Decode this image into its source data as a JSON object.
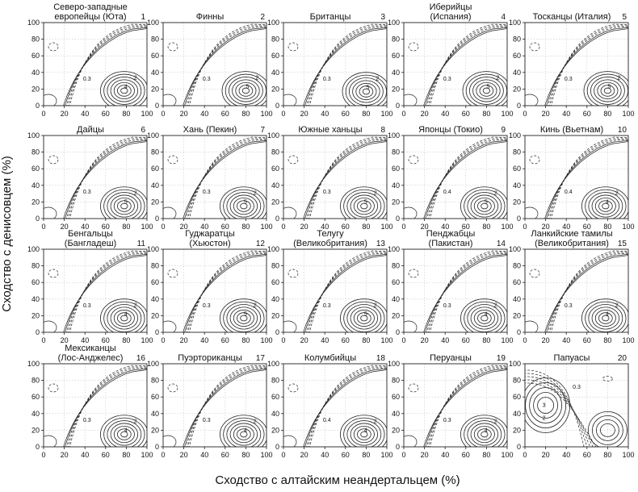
{
  "chart_data": {
    "type": "contour",
    "title": "",
    "xlabel": "Сходство с алтайским неандертальцем (%)",
    "ylabel": "Сходство с денисовцем (%)",
    "xlim": [
      0,
      100
    ],
    "ylim": [
      0,
      100
    ],
    "xticks": [
      0,
      20,
      40,
      60,
      80,
      100
    ],
    "yticks": [
      0,
      20,
      40,
      60,
      80,
      100
    ],
    "grid": true,
    "panels": [
      {
        "number": "1",
        "title": [
          "Северо-западные",
          "европейцы (Юта)"
        ],
        "peak": [
          78,
          18
        ],
        "labels": [
          "0.3",
          "2",
          "4"
        ]
      },
      {
        "number": "2",
        "title": [
          "Финны"
        ],
        "peak": [
          80,
          18
        ],
        "labels": [
          "0.3",
          "2",
          "5"
        ]
      },
      {
        "number": "3",
        "title": [
          "Британцы"
        ],
        "peak": [
          80,
          17
        ],
        "labels": [
          "0.3",
          "2",
          "5"
        ]
      },
      {
        "number": "4",
        "title": [
          "Иберийцы",
          "(Испания)"
        ],
        "peak": [
          80,
          18
        ],
        "labels": [
          "0.3",
          "2",
          "5"
        ]
      },
      {
        "number": "5",
        "title": [
          "Тосканцы (Италия)"
        ],
        "peak": [
          80,
          18
        ],
        "labels": [
          "0.3",
          "2",
          "5"
        ]
      },
      {
        "number": "6",
        "title": [
          "Дайцы"
        ],
        "peak": [
          78,
          15
        ],
        "labels": [
          "0.3",
          "2",
          "5"
        ]
      },
      {
        "number": "7",
        "title": [
          "Хань (Пекин)"
        ],
        "peak": [
          78,
          15
        ],
        "labels": [
          "0.3",
          "2",
          "5"
        ]
      },
      {
        "number": "8",
        "title": [
          "Южные ханьцы"
        ],
        "peak": [
          78,
          15
        ],
        "labels": [
          "0.3",
          "2",
          "5"
        ]
      },
      {
        "number": "9",
        "title": [
          "Японцы (Токио)"
        ],
        "peak": [
          78,
          15
        ],
        "labels": [
          "0.4",
          "2",
          "5"
        ]
      },
      {
        "number": "10",
        "title": [
          "Кинь (Вьетнам)"
        ],
        "peak": [
          78,
          15
        ],
        "labels": [
          "0.4",
          "2",
          "4"
        ]
      },
      {
        "number": "11",
        "title": [
          "Бенгальцы",
          "(Бангладеш)"
        ],
        "peak": [
          78,
          17
        ],
        "labels": [
          "0.3",
          "2",
          "4"
        ]
      },
      {
        "number": "12",
        "title": [
          "Гуджаратцы",
          "(Хьюстон)"
        ],
        "peak": [
          78,
          17
        ],
        "labels": [
          "0.3",
          "2",
          "5"
        ]
      },
      {
        "number": "13",
        "title": [
          "Телугу",
          "(Великобритания)"
        ],
        "peak": [
          78,
          17
        ],
        "labels": [
          "0.3",
          "2",
          "5"
        ]
      },
      {
        "number": "14",
        "title": [
          "Пенджабцы",
          "(Пакистан)"
        ],
        "peak": [
          78,
          17
        ],
        "labels": [
          "0.3",
          "2",
          "4"
        ]
      },
      {
        "number": "15",
        "title": [
          "Ланкийские тамилы",
          "(Великобритания)"
        ],
        "peak": [
          78,
          17
        ],
        "labels": [
          "0.3",
          "2",
          "4"
        ]
      },
      {
        "number": "16",
        "title": [
          "Мексиканцы",
          "(Лос-Анджелес)"
        ],
        "peak": [
          78,
          15
        ],
        "labels": [
          "0.3",
          "2",
          "4"
        ]
      },
      {
        "number": "17",
        "title": [
          "Пуэрториканцы"
        ],
        "peak": [
          78,
          15
        ],
        "labels": [
          "0.3",
          "2",
          "4"
        ]
      },
      {
        "number": "18",
        "title": [
          "Колумбийцы"
        ],
        "peak": [
          78,
          15
        ],
        "labels": [
          "0.4",
          "2",
          "4"
        ]
      },
      {
        "number": "19",
        "title": [
          "Перуанцы"
        ],
        "peak": [
          78,
          15
        ],
        "labels": [
          "0.3",
          "2",
          "4"
        ]
      },
      {
        "number": "20",
        "title": [
          "Папуасы"
        ],
        "peak": [
          20,
          50
        ],
        "secondary_peak": [
          80,
          20
        ],
        "labels": [
          "0.3",
          "2",
          "3"
        ]
      }
    ]
  }
}
